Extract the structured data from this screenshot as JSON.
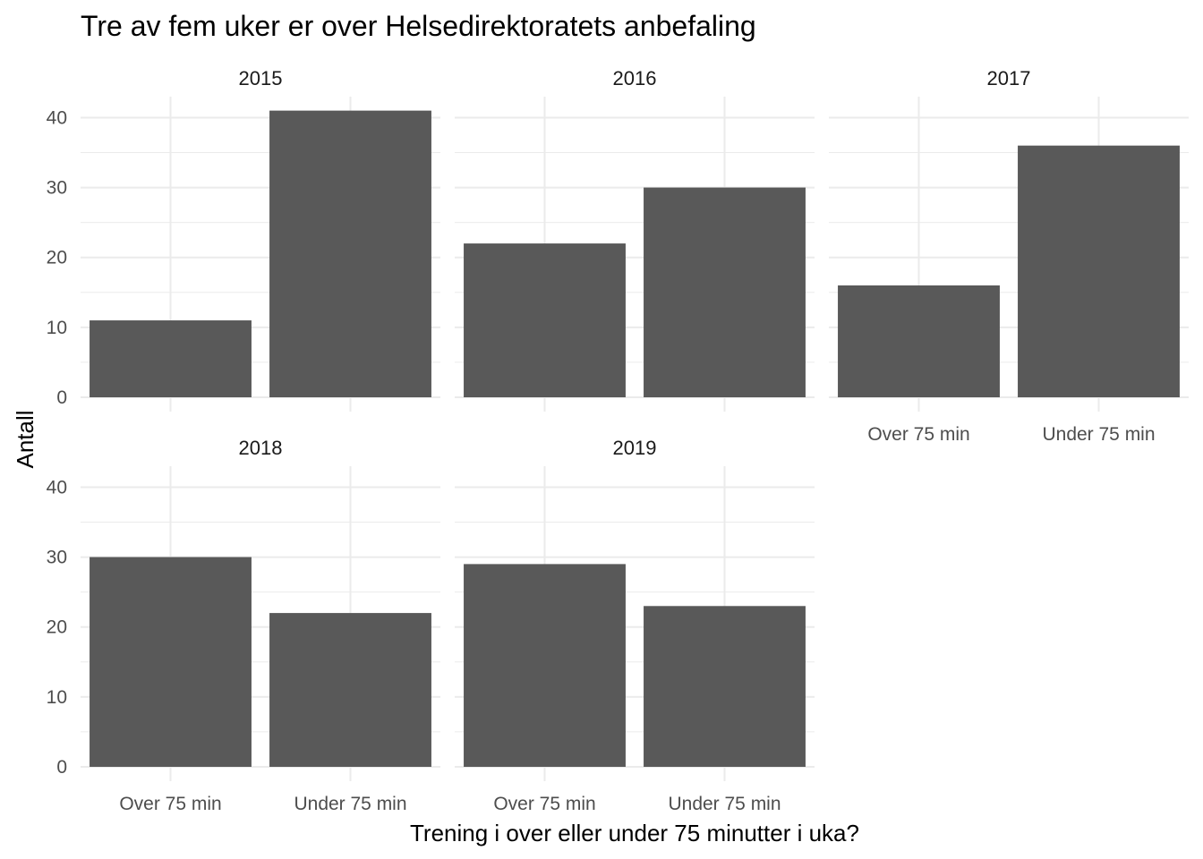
{
  "chart_data": {
    "type": "bar",
    "title": "Tre av fem uker  er over Helsedirektoratets anbefaling",
    "xlabel": "Trening i over eller under 75 minutter i uka?",
    "ylabel": "Antall",
    "categories": [
      "Over 75 min",
      "Under 75 min"
    ],
    "ylim": [
      0,
      43
    ],
    "y_ticks": [
      0,
      10,
      20,
      30,
      40
    ],
    "grid": true,
    "colors": {
      "bar": "#595959",
      "grid": "#ebebeb",
      "background": "#ffffff"
    },
    "facets": [
      {
        "label": "2015",
        "values": [
          11,
          41
        ]
      },
      {
        "label": "2016",
        "values": [
          22,
          30
        ]
      },
      {
        "label": "2017",
        "values": [
          16,
          36
        ]
      },
      {
        "label": "2018",
        "values": [
          30,
          22
        ]
      },
      {
        "label": "2019",
        "values": [
          29,
          23
        ]
      }
    ]
  }
}
